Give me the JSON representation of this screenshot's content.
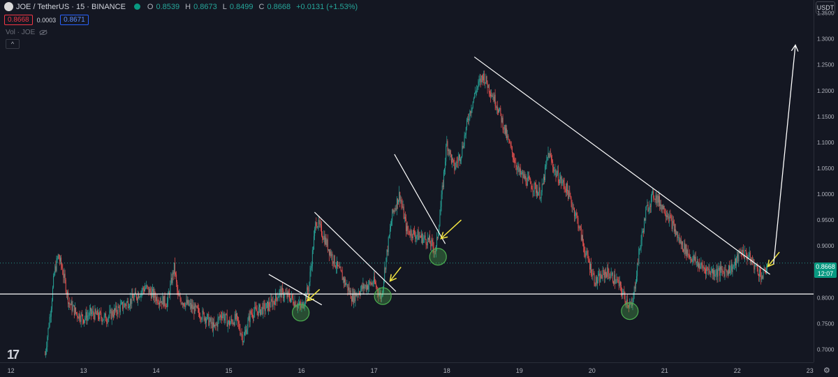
{
  "header": {
    "symbol": "JOE / TetherUS · 15 · BINANCE",
    "open_label": "O",
    "open": "0.8539",
    "high_label": "H",
    "high": "0.8673",
    "low_label": "L",
    "low": "0.8499",
    "close_label": "C",
    "close": "0.8668",
    "change": "+0.0131 (+1.53%)",
    "bid": "0.8668",
    "spread": "0.0003",
    "ask": "0.8671",
    "volume_label": "Vol · JOE",
    "collapse": "^"
  },
  "currency": "USDT",
  "price_tag": {
    "price": "0.8668",
    "countdown": "12:07"
  },
  "colors": {
    "up": "#26a69a",
    "down": "#ef5350",
    "line": "#ffffff",
    "arrow": "#f5e642",
    "circle": "#4caf50",
    "bg": "#141722"
  },
  "chart_data": {
    "type": "candlestick",
    "y_range": [
      0.675,
      1.375
    ],
    "x_range": [
      11.85,
      23.05
    ],
    "y_ticks": [
      {
        "value": 1.35,
        "label": "1.3500"
      },
      {
        "value": 1.3,
        "label": "1.3000"
      },
      {
        "value": 1.25,
        "label": "1.2500"
      },
      {
        "value": 1.2,
        "label": "1.2000"
      },
      {
        "value": 1.15,
        "label": "1.1500"
      },
      {
        "value": 1.1,
        "label": "1.1000"
      },
      {
        "value": 1.05,
        "label": "1.0500"
      },
      {
        "value": 1.0,
        "label": "1.0000"
      },
      {
        "value": 0.95,
        "label": "0.9500"
      },
      {
        "value": 0.9,
        "label": "0.9000"
      },
      {
        "value": 0.8,
        "label": "0.8000"
      },
      {
        "value": 0.75,
        "label": "0.7500"
      },
      {
        "value": 0.7,
        "label": "0.7000"
      }
    ],
    "x_ticks": [
      {
        "value": 12,
        "label": "12"
      },
      {
        "value": 13,
        "label": "13"
      },
      {
        "value": 14,
        "label": "14"
      },
      {
        "value": 15,
        "label": "15"
      },
      {
        "value": 16,
        "label": "16"
      },
      {
        "value": 17,
        "label": "17"
      },
      {
        "value": 18,
        "label": "18"
      },
      {
        "value": 19,
        "label": "19"
      },
      {
        "value": 20,
        "label": "20"
      },
      {
        "value": 21,
        "label": "21"
      },
      {
        "value": 22,
        "label": "22"
      },
      {
        "value": 23,
        "label": "23"
      }
    ],
    "price_path": [
      [
        12.47,
        0.69
      ],
      [
        12.55,
        0.78
      ],
      [
        12.6,
        0.85
      ],
      [
        12.65,
        0.88
      ],
      [
        12.7,
        0.86
      ],
      [
        12.8,
        0.79
      ],
      [
        12.9,
        0.77
      ],
      [
        13.0,
        0.76
      ],
      [
        13.1,
        0.77
      ],
      [
        13.3,
        0.76
      ],
      [
        13.5,
        0.78
      ],
      [
        13.7,
        0.8
      ],
      [
        13.85,
        0.82
      ],
      [
        14.0,
        0.8
      ],
      [
        14.15,
        0.79
      ],
      [
        14.25,
        0.86
      ],
      [
        14.3,
        0.8
      ],
      [
        14.5,
        0.78
      ],
      [
        14.7,
        0.76
      ],
      [
        14.8,
        0.74
      ],
      [
        14.9,
        0.77
      ],
      [
        15.0,
        0.75
      ],
      [
        15.1,
        0.76
      ],
      [
        15.2,
        0.72
      ],
      [
        15.3,
        0.77
      ],
      [
        15.5,
        0.78
      ],
      [
        15.6,
        0.79
      ],
      [
        15.7,
        0.81
      ],
      [
        15.85,
        0.8
      ],
      [
        16.0,
        0.78
      ],
      [
        16.1,
        0.82
      ],
      [
        16.2,
        0.95
      ],
      [
        16.3,
        0.92
      ],
      [
        16.45,
        0.87
      ],
      [
        16.6,
        0.83
      ],
      [
        16.7,
        0.8
      ],
      [
        16.85,
        0.82
      ],
      [
        17.0,
        0.83
      ],
      [
        17.1,
        0.8
      ],
      [
        17.15,
        0.86
      ],
      [
        17.25,
        0.96
      ],
      [
        17.35,
        1.0
      ],
      [
        17.45,
        0.93
      ],
      [
        17.6,
        0.92
      ],
      [
        17.75,
        0.91
      ],
      [
        17.85,
        0.89
      ],
      [
        17.92,
        0.98
      ],
      [
        18.0,
        1.1
      ],
      [
        18.1,
        1.05
      ],
      [
        18.2,
        1.08
      ],
      [
        18.3,
        1.15
      ],
      [
        18.4,
        1.2
      ],
      [
        18.5,
        1.23
      ],
      [
        18.6,
        1.2
      ],
      [
        18.7,
        1.17
      ],
      [
        18.85,
        1.1
      ],
      [
        19.0,
        1.04
      ],
      [
        19.15,
        1.02
      ],
      [
        19.3,
        1.0
      ],
      [
        19.4,
        1.08
      ],
      [
        19.5,
        1.04
      ],
      [
        19.65,
        1.01
      ],
      [
        19.8,
        0.95
      ],
      [
        19.9,
        0.89
      ],
      [
        20.05,
        0.83
      ],
      [
        20.2,
        0.85
      ],
      [
        20.35,
        0.83
      ],
      [
        20.45,
        0.8
      ],
      [
        20.55,
        0.78
      ],
      [
        20.65,
        0.89
      ],
      [
        20.75,
        0.97
      ],
      [
        20.85,
        1.0
      ],
      [
        20.95,
        0.98
      ],
      [
        21.05,
        0.96
      ],
      [
        21.2,
        0.91
      ],
      [
        21.35,
        0.88
      ],
      [
        21.5,
        0.86
      ],
      [
        21.65,
        0.85
      ],
      [
        21.8,
        0.85
      ],
      [
        21.95,
        0.86
      ],
      [
        22.05,
        0.89
      ],
      [
        22.15,
        0.88
      ],
      [
        22.25,
        0.86
      ],
      [
        22.35,
        0.84
      ],
      [
        22.42,
        0.867
      ]
    ],
    "horizontal_support": 0.807,
    "last_price": 0.8668,
    "trendlines": [
      {
        "from": [
          15.55,
          0.845
        ],
        "to": [
          16.28,
          0.786
        ]
      },
      {
        "from": [
          16.18,
          0.965
        ],
        "to": [
          17.3,
          0.812
        ]
      },
      {
        "from": [
          17.28,
          1.077
        ],
        "to": [
          17.98,
          0.904
        ]
      },
      {
        "from": [
          18.38,
          1.265
        ],
        "to": [
          22.45,
          0.845
        ]
      }
    ],
    "circles": [
      {
        "x": 15.99,
        "y": 0.771
      },
      {
        "x": 17.12,
        "y": 0.803
      },
      {
        "x": 17.88,
        "y": 0.879
      },
      {
        "x": 20.52,
        "y": 0.774
      }
    ],
    "yellow_arrows": [
      {
        "from": [
          16.25,
          0.816
        ],
        "to": [
          16.08,
          0.794
        ]
      },
      {
        "from": [
          17.37,
          0.859
        ],
        "to": [
          17.22,
          0.832
        ]
      },
      {
        "from": [
          18.2,
          0.95
        ],
        "to": [
          17.92,
          0.914
        ]
      },
      {
        "from": [
          22.58,
          0.888
        ],
        "to": [
          22.42,
          0.86
        ]
      }
    ],
    "projection_arrow": {
      "from": [
        22.5,
        0.865
      ],
      "to": [
        22.8,
        1.288
      ]
    }
  }
}
